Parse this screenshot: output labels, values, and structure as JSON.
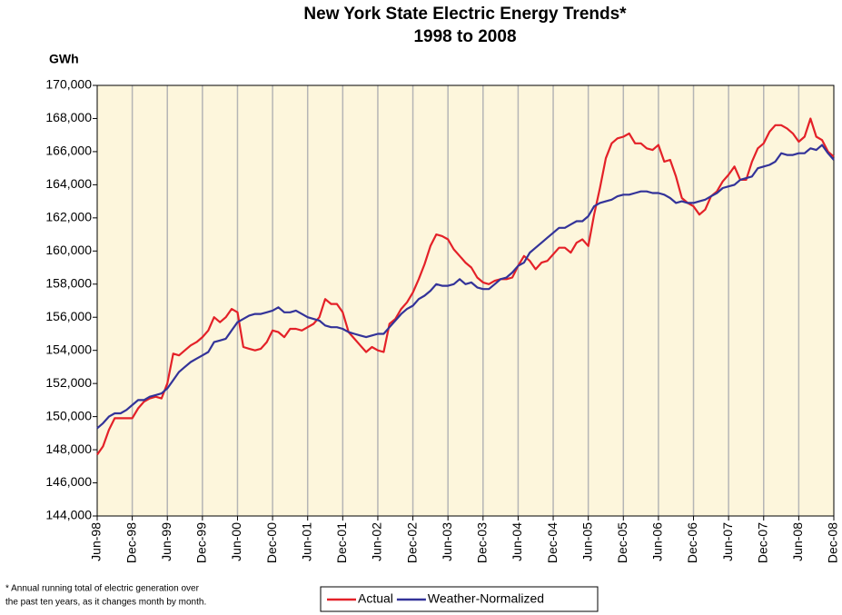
{
  "chart_data": {
    "type": "line",
    "title": "New York State Electric Energy Trends*",
    "subtitle": "1998 to 2008",
    "y_label": "GWh",
    "note": [
      "* Annual running total of electric generation over",
      "the past ten years, as it changes month by month."
    ],
    "categories": [
      "Jun-98",
      null,
      null,
      null,
      null,
      null,
      "Dec-98",
      null,
      null,
      null,
      null,
      null,
      "Jun-99",
      null,
      null,
      null,
      null,
      null,
      "Dec-99",
      null,
      null,
      null,
      null,
      null,
      "Jun-00",
      null,
      null,
      null,
      null,
      null,
      "Dec-00",
      null,
      null,
      null,
      null,
      null,
      "Jun-01",
      null,
      null,
      null,
      null,
      null,
      "Dec-01",
      null,
      null,
      null,
      null,
      null,
      "Jun-02",
      null,
      null,
      null,
      null,
      null,
      "Dec-02",
      null,
      null,
      null,
      null,
      null,
      "Jun-03",
      null,
      null,
      null,
      null,
      null,
      "Dec-03",
      null,
      null,
      null,
      null,
      null,
      "Jun-04",
      null,
      null,
      null,
      null,
      null,
      "Dec-04",
      null,
      null,
      null,
      null,
      null,
      "Jun-05",
      null,
      null,
      null,
      null,
      null,
      "Dec-05",
      null,
      null,
      null,
      null,
      null,
      "Jun-06",
      null,
      null,
      null,
      null,
      null,
      "Dec-06",
      null,
      null,
      null,
      null,
      null,
      "Jun-07",
      null,
      null,
      null,
      null,
      null,
      "Dec-07",
      null,
      null,
      null,
      null,
      null,
      "Jun-08",
      null,
      null,
      null,
      null,
      null,
      "Dec-08"
    ],
    "series": [
      {
        "name": "Actual",
        "color": "#e42128",
        "values": [
          147700,
          148200,
          149200,
          149900,
          149900,
          149900,
          149900,
          150500,
          150900,
          151100,
          151200,
          151100,
          152000,
          153800,
          153700,
          154000,
          154300,
          154500,
          154800,
          155200,
          156000,
          155700,
          156000,
          156500,
          156300,
          154200,
          154100,
          154000,
          154100,
          154500,
          155200,
          155100,
          154800,
          155300,
          155300,
          155200,
          155400,
          155600,
          156000,
          157100,
          156800,
          156800,
          156300,
          155100,
          154700,
          154300,
          153900,
          154200,
          154000,
          153900,
          155600,
          155900,
          156500,
          156900,
          157500,
          158300,
          159200,
          160300,
          161000,
          160900,
          160700,
          160100,
          159700,
          159300,
          159000,
          158400,
          158100,
          158000,
          158200,
          158300,
          158300,
          158400,
          159100,
          159700,
          159400,
          158900,
          159300,
          159400,
          159800,
          160200,
          160200,
          159900,
          160500,
          160700,
          160300,
          162200,
          163800,
          165600,
          166500,
          166800,
          166900,
          167100,
          166500,
          166500,
          166200,
          166100,
          166400,
          165400,
          165500,
          164500,
          163200,
          162900,
          162700,
          162200,
          162500,
          163300,
          163600,
          164200,
          164600,
          165100,
          164300,
          164300,
          165400,
          166200,
          166500,
          167200,
          167600,
          167600,
          167400,
          167100,
          166600,
          166900,
          168000,
          166900,
          166700,
          166000,
          165700
        ]
      },
      {
        "name": "Weather-Normalized",
        "color": "#333399",
        "values": [
          149300,
          149600,
          150000,
          150200,
          150200,
          150400,
          150700,
          151000,
          151000,
          151200,
          151300,
          151400,
          151700,
          152200,
          152700,
          153000,
          153300,
          153500,
          153700,
          153900,
          154500,
          154600,
          154700,
          155200,
          155700,
          155900,
          156100,
          156200,
          156200,
          156300,
          156400,
          156600,
          156300,
          156300,
          156400,
          156200,
          156000,
          155900,
          155800,
          155500,
          155400,
          155400,
          155300,
          155100,
          155000,
          154900,
          154800,
          154900,
          155000,
          155000,
          155400,
          155800,
          156200,
          156500,
          156700,
          157100,
          157300,
          157600,
          158000,
          157900,
          157900,
          158000,
          158300,
          158000,
          158100,
          157800,
          157700,
          157700,
          158000,
          158300,
          158400,
          158700,
          159100,
          159300,
          159900,
          160200,
          160500,
          160800,
          161100,
          161400,
          161400,
          161600,
          161800,
          161800,
          162100,
          162700,
          162900,
          163000,
          163100,
          163300,
          163400,
          163400,
          163500,
          163600,
          163600,
          163500,
          163500,
          163400,
          163200,
          162900,
          163000,
          162900,
          162900,
          163000,
          163100,
          163300,
          163500,
          163800,
          163900,
          164000,
          164300,
          164400,
          164500,
          165000,
          165100,
          165200,
          165400,
          165900,
          165800,
          165800,
          165900,
          165900,
          166200,
          166100,
          166400,
          165900,
          165500
        ]
      }
    ],
    "ylim": [
      144000,
      170000
    ],
    "yticks": [
      {
        "value": 144000,
        "label": "144,000"
      },
      {
        "value": 146000,
        "label": "146,000"
      },
      {
        "value": 148000,
        "label": "148,000"
      },
      {
        "value": 150000,
        "label": "150,000"
      },
      {
        "value": 152000,
        "label": "152,000"
      },
      {
        "value": 154000,
        "label": "154,000"
      },
      {
        "value": 156000,
        "label": "156,000"
      },
      {
        "value": 158000,
        "label": "158,000"
      },
      {
        "value": 160000,
        "label": "160,000"
      },
      {
        "value": 162000,
        "label": "162,000"
      },
      {
        "value": 164000,
        "label": "164,000"
      },
      {
        "value": 166000,
        "label": "166,000"
      },
      {
        "value": 168000,
        "label": "168,000"
      },
      {
        "value": 170000,
        "label": "170,000"
      }
    ],
    "grid": true,
    "legend": "bottom"
  }
}
